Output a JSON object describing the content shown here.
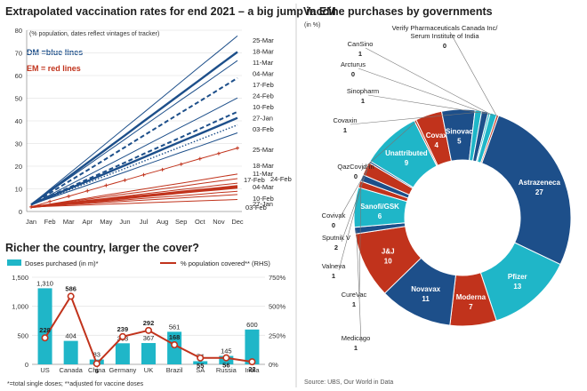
{
  "chart_data": [
    {
      "type": "line",
      "title": "Extrapolated vaccination rates for end 2021 – a big jump in EM",
      "subtitle": "(% population, dates reflect vintages of tracker)",
      "x": [
        "Jan",
        "Feb",
        "Mar",
        "Apr",
        "May",
        "Jun",
        "Jul",
        "Aug",
        "Sep",
        "Oct",
        "Nov",
        "Dec"
      ],
      "ylim": [
        0,
        80
      ],
      "yticks": [
        0,
        10,
        20,
        30,
        40,
        50,
        60,
        70,
        80
      ],
      "legend": {
        "dm": "DM =blue lines",
        "em": "EM = red lines"
      },
      "series": [
        {
          "name": "25-Mar",
          "group": "DM",
          "style": "thin",
          "values": [
            3,
            9.8,
            16.6,
            23.3,
            30.1,
            36.9,
            43.6,
            50.4,
            57.2,
            64,
            70.7,
            77.5
          ]
        },
        {
          "name": "18-Mar",
          "group": "DM",
          "style": "thick",
          "values": [
            3,
            9.1,
            15.3,
            21.4,
            27.5,
            33.6,
            39.8,
            45.9,
            52,
            58.1,
            64.3,
            70.4
          ]
        },
        {
          "name": "11-Mar",
          "group": "DM",
          "style": "thin",
          "values": [
            3,
            8.8,
            14.6,
            20.3,
            26.1,
            31.9,
            37.7,
            43.5,
            49.3,
            55,
            60.8,
            66.6
          ]
        },
        {
          "name": "04-Mar",
          "group": "DM",
          "style": "dash",
          "values": [
            3,
            8.1,
            13.2,
            18.2,
            23.3,
            28.4,
            33.5,
            38.6,
            43.7,
            48.7,
            53.8,
            58.9
          ]
        },
        {
          "name": "17-Feb",
          "group": "DM",
          "style": "thin",
          "values": [
            3,
            7.3,
            11.6,
            15.8,
            20.1,
            24.4,
            28.7,
            33,
            37.3,
            41.5,
            45.8,
            50.1
          ]
        },
        {
          "name": "24-Feb",
          "group": "DM",
          "style": "dash",
          "values": [
            3,
            6.7,
            10.5,
            14.2,
            17.9,
            21.6,
            25.4,
            29.1,
            32.8,
            36.5,
            40.3,
            44
          ]
        },
        {
          "name": "10-Feb",
          "group": "DM",
          "style": "thick",
          "values": [
            3,
            6.5,
            10,
            13.4,
            16.9,
            20.4,
            23.9,
            27.4,
            30.9,
            34.3,
            37.8,
            41.3
          ]
        },
        {
          "name": "27-Jan",
          "group": "DM",
          "style": "dot",
          "values": [
            3,
            6.2,
            9.4,
            12.6,
            15.8,
            19,
            22.2,
            25.4,
            28.6,
            31.8,
            35,
            38.2
          ]
        },
        {
          "name": "03-Feb",
          "group": "DM",
          "style": "thin",
          "values": [
            3,
            5.9,
            8.8,
            11.6,
            14.5,
            17.4,
            20.3,
            23.2,
            26.1,
            28.9,
            31.8,
            34.7
          ]
        },
        {
          "name": "25-Mar",
          "group": "EM",
          "style": "marker",
          "values": [
            2,
            4.4,
            6.7,
            9.1,
            11.5,
            13.8,
            16.2,
            18.5,
            20.9,
            23.3,
            25.6,
            28
          ]
        },
        {
          "name": "18-Mar",
          "group": "EM",
          "style": "thin",
          "values": [
            2,
            3.3,
            4.6,
            5.9,
            7.3,
            8.6,
            9.9,
            11.2,
            12.5,
            13.8,
            15.2,
            16.5
          ]
        },
        {
          "name": "11-Mar",
          "group": "EM",
          "style": "thin",
          "values": [
            2,
            3.1,
            4.3,
            5.4,
            6.6,
            7.7,
            8.8,
            10,
            11.1,
            12.3,
            13.4,
            14.5
          ]
        },
        {
          "name": "24-Feb",
          "group": "EM",
          "style": "thin",
          "values": [
            2,
            3,
            3.9,
            4.9,
            5.8,
            6.8,
            7.8,
            8.7,
            9.7,
            10.6,
            11.6,
            12.5
          ]
        },
        {
          "name": "04-Mar",
          "group": "EM",
          "style": "thick",
          "values": [
            2,
            2.8,
            3.7,
            4.5,
            5.3,
            6.2,
            7,
            7.8,
            8.7,
            9.5,
            10.3,
            11.2
          ]
        },
        {
          "name": "17-Feb",
          "group": "EM",
          "style": "thick",
          "values": [
            2,
            2.8,
            3.6,
            4.4,
            5.1,
            5.9,
            6.7,
            7.5,
            8.3,
            9.1,
            9.8,
            10.6
          ]
        },
        {
          "name": "10-Feb",
          "group": "EM",
          "style": "thin",
          "values": [
            2,
            2.6,
            3.3,
            3.9,
            4.5,
            5.1,
            5.8,
            6.4,
            7,
            7.6,
            8.3,
            8.9
          ]
        },
        {
          "name": "27-Jan",
          "group": "EM",
          "style": "thin",
          "values": [
            2,
            2.5,
            3,
            3.5,
            4,
            4.5,
            5,
            5.5,
            6,
            6.5,
            7,
            7.5
          ]
        },
        {
          "name": "03-Feb",
          "group": "EM",
          "style": "thin",
          "values": [
            2,
            2.3,
            2.6,
            2.9,
            3.2,
            3.5,
            3.8,
            4.1,
            4.4,
            4.7,
            5,
            5.3
          ]
        }
      ]
    },
    {
      "type": "bar",
      "title": "Richer the country, larger the cover?",
      "legend": {
        "bars": "Doses purchased (in m)*",
        "line": "% population covered** (RHS)"
      },
      "categories": [
        "US",
        "Canada",
        "China",
        "Germany",
        "UK",
        "Brazil",
        "SA",
        "Russia",
        "India"
      ],
      "bars": {
        "values": [
          1310,
          404,
          83,
          363,
          367,
          561,
          54,
          145,
          600
        ],
        "labels": [
          "1,310",
          "404",
          "83",
          "363",
          "367",
          "561",
          "54",
          "145",
          "600"
        ],
        "ylim": [
          0,
          1500
        ],
        "yticks": [
          "0",
          "500",
          "1,000",
          "1,500"
        ]
      },
      "line": {
        "values": [
          228,
          586,
          6,
          239,
          292,
          168,
          55,
          56,
          22
        ],
        "labels": [
          "228",
          "586",
          "6",
          "239",
          "292",
          "168",
          "55",
          "56",
          "22"
        ],
        "ylim": [
          0,
          750
        ],
        "yticks": [
          "0%",
          "250%",
          "500%",
          "750%"
        ]
      },
      "footnote": "*=total single doses; **adjusted for vaccine doses"
    },
    {
      "type": "pie",
      "title": "Vaccine purchases by governments",
      "subtitle": "(in %)",
      "slices": [
        {
          "label": "Astrazeneca",
          "value": 27,
          "shown": "27",
          "color": "#1d4f8a",
          "inside": true
        },
        {
          "label": "Pfizer",
          "value": 13,
          "shown": "13",
          "color": "#1fb6c8",
          "inside": true
        },
        {
          "label": "Moderna",
          "value": 7,
          "shown": "7",
          "color": "#c1331c",
          "inside": true
        },
        {
          "label": "Novavax",
          "value": 11,
          "shown": "11",
          "color": "#1d4f8a",
          "inside": true
        },
        {
          "label": "J&J",
          "value": 10,
          "shown": "10",
          "color": "#c1331c",
          "inside": true
        },
        {
          "label": "Medicago",
          "value": 1,
          "shown": "1",
          "color": "#1d4f8a",
          "inside": false
        },
        {
          "label": "Sanofi/GSK",
          "value": 6,
          "shown": "6",
          "color": "#1fb6c8",
          "inside": true
        },
        {
          "label": "CureVac",
          "value": 1,
          "shown": "1",
          "color": "#c1331c",
          "inside": false
        },
        {
          "label": "Valneva",
          "value": 1,
          "shown": "1",
          "color": "#1d4f8a",
          "inside": false
        },
        {
          "label": "Sputnik V",
          "value": 2,
          "shown": "2",
          "color": "#c1331c",
          "inside": false
        },
        {
          "label": "Covivak",
          "value": 0.3,
          "shown": "0",
          "color": "#1d4f8a",
          "inside": false
        },
        {
          "label": "Unattributed",
          "value": 9,
          "shown": "9",
          "color": "#1fb6c8",
          "inside": true
        },
        {
          "label": "QazCovid-in",
          "value": 0.3,
          "shown": "0",
          "color": "#c1331c",
          "inside": false
        },
        {
          "label": "Covax",
          "value": 4,
          "shown": "4",
          "color": "#c1331c",
          "inside": true
        },
        {
          "label": "Sinovac",
          "value": 5,
          "shown": "5",
          "color": "#1d4f8a",
          "inside": true
        },
        {
          "label": "Covaxin",
          "value": 1,
          "shown": "1",
          "color": "#1fb6c8",
          "inside": false
        },
        {
          "label": "Sinopharm",
          "value": 1,
          "shown": "1",
          "color": "#1d4f8a",
          "inside": false
        },
        {
          "label": "Arcturus",
          "value": 0.3,
          "shown": "0",
          "color": "#1fb6c8",
          "inside": false
        },
        {
          "label": "CanSino",
          "value": 1,
          "shown": "1",
          "color": "#1fb6c8",
          "inside": false
        },
        {
          "label": "Verify Pharmaceuticals Canada Inc/ Serum Institute of India",
          "value": 0.3,
          "shown": "0",
          "color": "#c1331c",
          "inside": false
        }
      ],
      "source": "Source: UBS, Our World in Data"
    }
  ]
}
